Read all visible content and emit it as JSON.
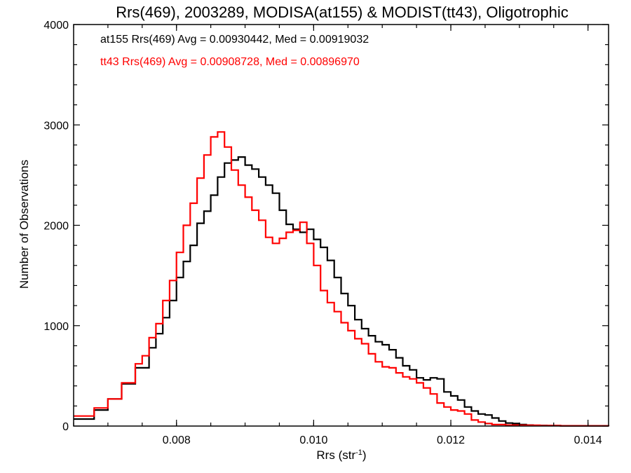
{
  "chart_data": {
    "type": "line",
    "title": "Rrs(469), 2003289, MODISA(at155) & MODIST(tt43), Oligotrophic",
    "xlabel_main": "Rrs (str",
    "xlabel_sup": "-1",
    "xlabel_close": ")",
    "ylabel": "Number of Observations",
    "xlim": [
      0.0065,
      0.0143
    ],
    "ylim": [
      0,
      4000
    ],
    "x_ticks": [
      0.008,
      0.01,
      0.012,
      0.014
    ],
    "x_tick_labels": [
      "0.008",
      "0.010",
      "0.012",
      "0.014"
    ],
    "y_ticks": [
      0,
      1000,
      2000,
      3000,
      4000
    ],
    "y_tick_labels": [
      "0",
      "1000",
      "2000",
      "3000",
      "4000"
    ],
    "grid": false,
    "annotations": [
      "at155 Rrs(469) Avg = 0.00930442, Med = 0.00919032",
      "tt43 Rrs(469) Avg = 0.00908728, Med = 0.00896970"
    ],
    "series": [
      {
        "color": "#000000",
        "x": [
          0.0065,
          0.0068,
          0.007,
          0.0072,
          0.0074,
          0.0076,
          0.0077,
          0.0078,
          0.0079,
          0.008,
          0.0081,
          0.0082,
          0.0083,
          0.0084,
          0.0085,
          0.0086,
          0.0087,
          0.0088,
          0.0089,
          0.009,
          0.0091,
          0.0092,
          0.0093,
          0.0094,
          0.0095,
          0.0096,
          0.0097,
          0.0098,
          0.0099,
          0.01,
          0.0101,
          0.0102,
          0.0103,
          0.0104,
          0.0105,
          0.0106,
          0.0107,
          0.0108,
          0.0109,
          0.011,
          0.0111,
          0.0112,
          0.0113,
          0.0114,
          0.0115,
          0.0116,
          0.0117,
          0.0118,
          0.0119,
          0.012,
          0.0121,
          0.0122,
          0.0123,
          0.0124,
          0.0125,
          0.0126,
          0.0127,
          0.0128,
          0.0129,
          0.013,
          0.0131,
          0.0132,
          0.0134,
          0.0136,
          0.0138,
          0.014,
          0.0143
        ],
        "y": [
          70,
          160,
          270,
          420,
          580,
          780,
          920,
          1080,
          1250,
          1480,
          1640,
          1800,
          2020,
          2140,
          2300,
          2480,
          2620,
          2650,
          2680,
          2600,
          2560,
          2480,
          2400,
          2320,
          2150,
          2010,
          1960,
          1930,
          1960,
          1860,
          1780,
          1650,
          1480,
          1320,
          1200,
          1060,
          970,
          900,
          840,
          810,
          760,
          680,
          600,
          560,
          480,
          460,
          480,
          470,
          340,
          300,
          260,
          190,
          150,
          120,
          110,
          80,
          50,
          30,
          25,
          15,
          10,
          6,
          4,
          3,
          2,
          2,
          0
        ]
      },
      {
        "color": "#ff0000",
        "x": [
          0.0065,
          0.0068,
          0.007,
          0.0072,
          0.0074,
          0.0075,
          0.0076,
          0.0077,
          0.0078,
          0.0079,
          0.008,
          0.0081,
          0.0082,
          0.0083,
          0.0084,
          0.0085,
          0.0086,
          0.0087,
          0.0088,
          0.0089,
          0.009,
          0.0091,
          0.0092,
          0.0093,
          0.0094,
          0.0095,
          0.0096,
          0.0097,
          0.0098,
          0.0099,
          0.01,
          0.0101,
          0.0102,
          0.0103,
          0.0104,
          0.0105,
          0.0106,
          0.0107,
          0.0108,
          0.0109,
          0.011,
          0.0111,
          0.0112,
          0.0113,
          0.0114,
          0.0115,
          0.0116,
          0.0117,
          0.0118,
          0.0119,
          0.012,
          0.0121,
          0.0122,
          0.0123,
          0.0124,
          0.0125,
          0.0126,
          0.0128,
          0.013,
          0.0133,
          0.0136,
          0.0139,
          0.0143
        ],
        "y": [
          100,
          180,
          270,
          430,
          620,
          700,
          880,
          1020,
          1250,
          1450,
          1730,
          2000,
          2220,
          2470,
          2700,
          2880,
          2930,
          2780,
          2550,
          2400,
          2280,
          2150,
          2050,
          1880,
          1820,
          1870,
          1930,
          1950,
          2030,
          1820,
          1600,
          1350,
          1230,
          1140,
          1030,
          950,
          870,
          820,
          720,
          640,
          590,
          580,
          530,
          490,
          470,
          430,
          380,
          320,
          230,
          190,
          160,
          150,
          120,
          60,
          40,
          25,
          15,
          10,
          8,
          5,
          3,
          2,
          0
        ]
      }
    ]
  }
}
